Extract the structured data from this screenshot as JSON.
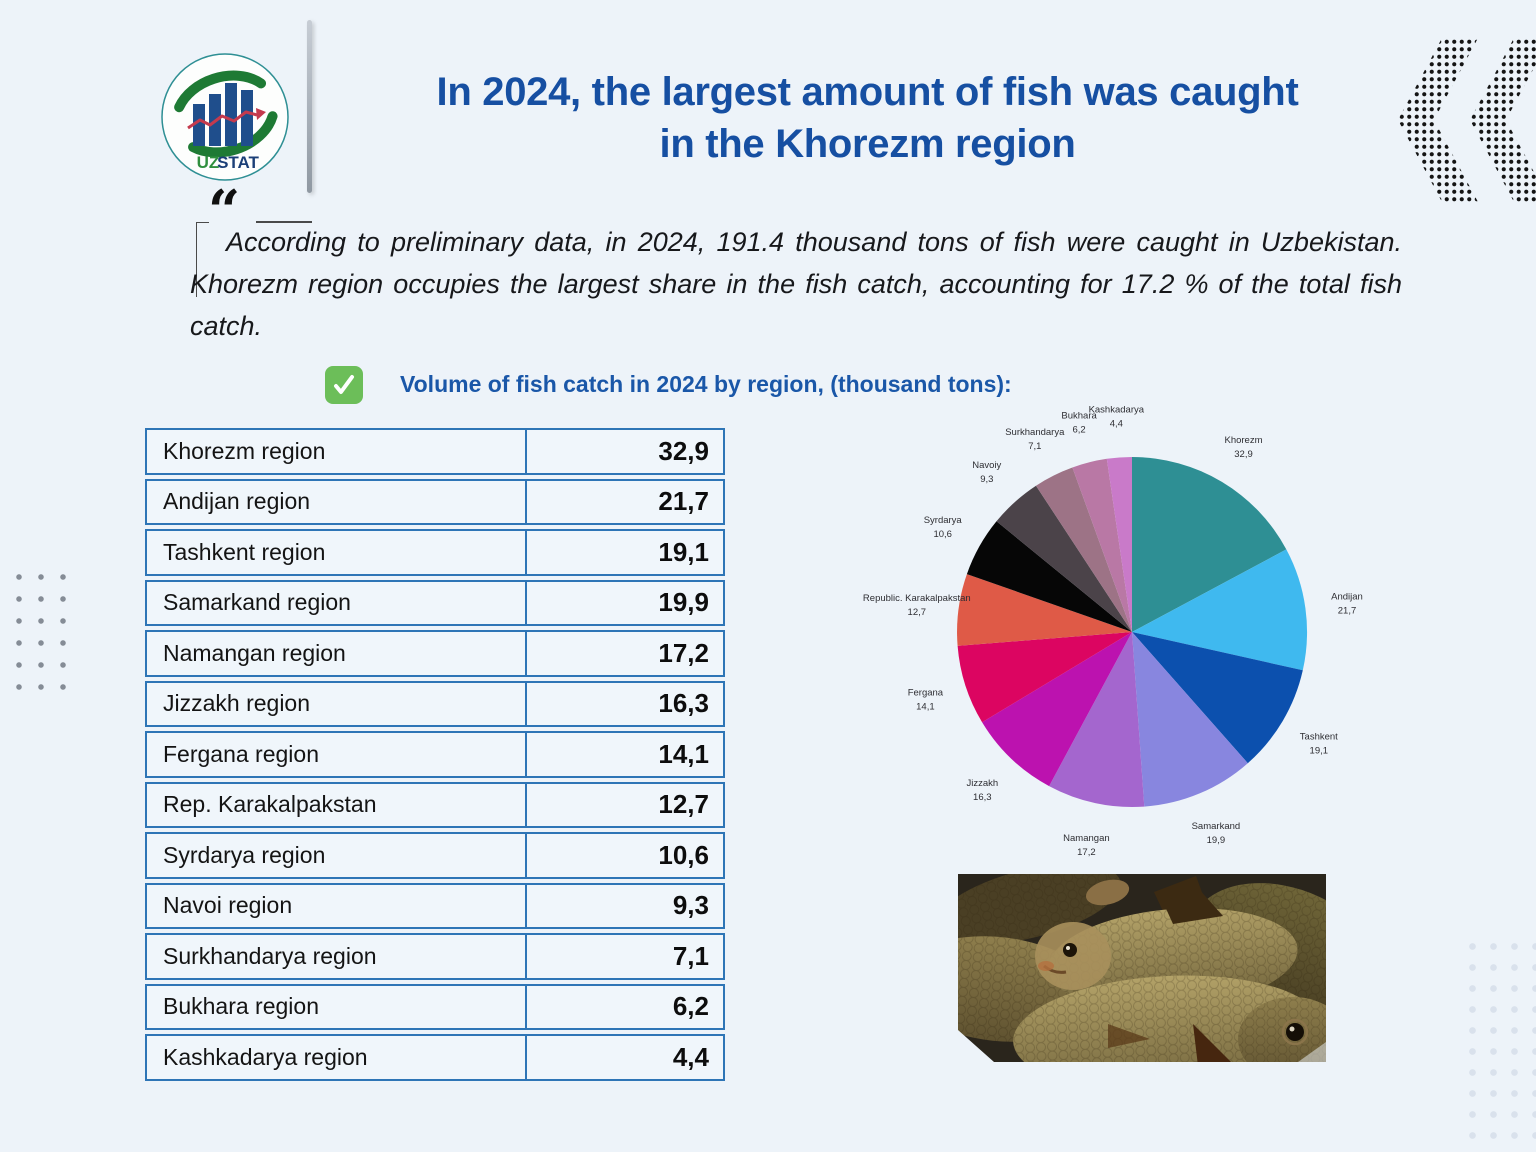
{
  "logo": {
    "uz": "UZ",
    "stat": "STAT"
  },
  "header": {
    "title_line1": "In 2024, the largest amount of fish was caught",
    "title_line2": "in the Khorezm region",
    "title_color": "#164FA2"
  },
  "quote": {
    "mark": "“",
    "text": "According to preliminary data, in 2024, 191.4 thousand tons of fish were caught in Uzbekistan. Khorezm region occupies the largest share in the fish catch, accounting for 17.2 % of the total fish catch."
  },
  "subtitle": {
    "checkmark_color": "#6CBE59",
    "text": "Volume of fish catch in 2024 by region, (thousand tons):"
  },
  "table": {
    "border_color": "#2E75B6",
    "rows": [
      {
        "label": "Khorezm region",
        "value": "32,9"
      },
      {
        "label": "Andijan region",
        "value": "21,7"
      },
      {
        "label": "Tashkent region",
        "value": "19,1"
      },
      {
        "label": "Samarkand region",
        "value": "19,9"
      },
      {
        "label": "Namangan region",
        "value": "17,2"
      },
      {
        "label": "Jizzakh region",
        "value": "16,3"
      },
      {
        "label": "Fergana region",
        "value": "14,1"
      },
      {
        "label": "Rep. Karakalpakstan",
        "value": "12,7"
      },
      {
        "label": "Syrdarya region",
        "value": "10,6"
      },
      {
        "label": "Navoi region",
        "value": "9,3"
      },
      {
        "label": "Surkhandarya region",
        "value": "7,1"
      },
      {
        "label": "Bukhara region",
        "value": "6,2"
      },
      {
        "label": "Kashkadarya region",
        "value": "4,4"
      }
    ]
  },
  "chart_data": {
    "type": "pie",
    "title": "Volume of fish catch in 2024 by region (thousand tons)",
    "categories": [
      "Khorezm",
      "Andijan",
      "Tashkent",
      "Samarkand",
      "Namangan",
      "Jizzakh",
      "Fergana",
      "Republic. Karakalpakstan",
      "Syrdarya",
      "Navoiy",
      "Surkhandarya",
      "Bukhara",
      "Kashkadarya"
    ],
    "values": [
      32.9,
      21.7,
      19.1,
      19.9,
      17.2,
      16.3,
      14.1,
      12.7,
      10.6,
      9.3,
      7.1,
      6.2,
      4.4
    ],
    "value_labels": [
      "32,9",
      "21,7",
      "19,1",
      "19,9",
      "17,2",
      "16,3",
      "14,1",
      "12,7",
      "10,6",
      "9,3",
      "7,1",
      "6,2",
      "4,4"
    ],
    "colors": [
      "#2E8F94",
      "#3FB9EF",
      "#0C50AE",
      "#8886DF",
      "#A466CE",
      "#BC12AF",
      "#DC0561",
      "#DF5A47",
      "#060606",
      "#4B4349",
      "#9D7386",
      "#B978A5",
      "#C97AC9"
    ],
    "start_angle_deg": 0,
    "direction": "clockwise",
    "label_position": "outside",
    "legend": "none",
    "total": 191.5
  }
}
